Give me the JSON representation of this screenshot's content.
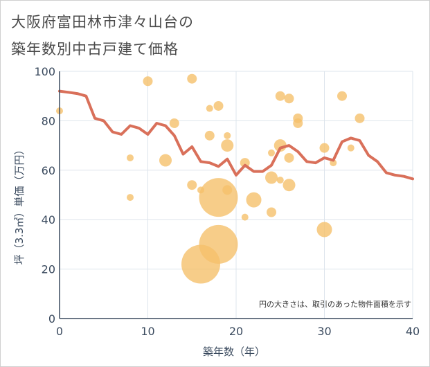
{
  "title_lines": [
    "大阪府富田林市津々山台の",
    "築年数別中古戸建て価格"
  ],
  "chart_data": {
    "type": "scatter",
    "xlabel": "築年数（年）",
    "ylabel": "坪（3.3㎡）単価（万円）",
    "xlim": [
      0,
      40
    ],
    "ylim": [
      0,
      100
    ],
    "xticks": [
      0,
      10,
      20,
      30,
      40
    ],
    "yticks": [
      0,
      20,
      40,
      60,
      80,
      100
    ],
    "grid": true,
    "note": "円の大きさは、取引のあった物件面積を示す",
    "colors": {
      "bubble": "#f5c06c",
      "line": "#d9705a",
      "grid": "#dde4ec",
      "axis": "#3a4a5e"
    },
    "bubbles": [
      {
        "x": 0,
        "y": 84,
        "size": 1
      },
      {
        "x": 8,
        "y": 65,
        "size": 1
      },
      {
        "x": 8,
        "y": 49,
        "size": 1
      },
      {
        "x": 10,
        "y": 96,
        "size": 2
      },
      {
        "x": 12,
        "y": 64,
        "size": 3
      },
      {
        "x": 13,
        "y": 79,
        "size": 2
      },
      {
        "x": 15,
        "y": 97,
        "size": 2
      },
      {
        "x": 15,
        "y": 54,
        "size": 2
      },
      {
        "x": 16,
        "y": 52,
        "size": 1
      },
      {
        "x": 16,
        "y": 22,
        "size": 10
      },
      {
        "x": 17,
        "y": 85,
        "size": 1
      },
      {
        "x": 17,
        "y": 74,
        "size": 2
      },
      {
        "x": 18,
        "y": 86,
        "size": 2
      },
      {
        "x": 18,
        "y": 49,
        "size": 10
      },
      {
        "x": 18,
        "y": 30,
        "size": 10
      },
      {
        "x": 19,
        "y": 74,
        "size": 1
      },
      {
        "x": 19,
        "y": 70,
        "size": 3
      },
      {
        "x": 19,
        "y": 52,
        "size": 2
      },
      {
        "x": 21,
        "y": 63,
        "size": 2
      },
      {
        "x": 21,
        "y": 41,
        "size": 1
      },
      {
        "x": 22,
        "y": 48,
        "size": 4
      },
      {
        "x": 24,
        "y": 67,
        "size": 1
      },
      {
        "x": 24,
        "y": 57,
        "size": 3
      },
      {
        "x": 24,
        "y": 43,
        "size": 2
      },
      {
        "x": 25,
        "y": 90,
        "size": 2
      },
      {
        "x": 25,
        "y": 70,
        "size": 3
      },
      {
        "x": 25,
        "y": 56,
        "size": 1
      },
      {
        "x": 26,
        "y": 89,
        "size": 2
      },
      {
        "x": 26,
        "y": 65,
        "size": 2
      },
      {
        "x": 26,
        "y": 54,
        "size": 3
      },
      {
        "x": 27,
        "y": 81,
        "size": 2
      },
      {
        "x": 27,
        "y": 79,
        "size": 2
      },
      {
        "x": 30,
        "y": 69,
        "size": 2
      },
      {
        "x": 30,
        "y": 36,
        "size": 4
      },
      {
        "x": 31,
        "y": 63,
        "size": 1
      },
      {
        "x": 32,
        "y": 90,
        "size": 2
      },
      {
        "x": 33,
        "y": 69,
        "size": 1
      },
      {
        "x": 34,
        "y": 81,
        "size": 2
      }
    ],
    "trend": {
      "x": [
        0,
        1,
        2,
        3,
        4,
        5,
        6,
        7,
        8,
        9,
        10,
        11,
        12,
        13,
        14,
        15,
        16,
        17,
        18,
        19,
        20,
        21,
        22,
        23,
        24,
        25,
        26,
        27,
        28,
        29,
        30,
        31,
        32,
        33,
        34,
        35,
        36,
        37,
        38,
        39,
        40
      ],
      "y": [
        92,
        91.5,
        91,
        90,
        81,
        80,
        75.5,
        74.5,
        78,
        77,
        74.5,
        79,
        78,
        74,
        66.5,
        69.5,
        63.5,
        63,
        61.5,
        64.5,
        58,
        62,
        59.5,
        59.5,
        62,
        69,
        70,
        67.5,
        63.5,
        63,
        65,
        64,
        71.5,
        73,
        72,
        66,
        63.5,
        59,
        58,
        57.5,
        56.5
      ]
    }
  }
}
